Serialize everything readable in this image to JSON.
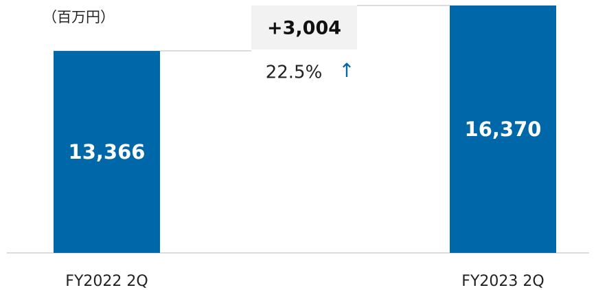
{
  "chart_data": {
    "type": "bar",
    "unit_label": "（百万円）",
    "categories": [
      "FY2022 2Q",
      "FY2023 2Q"
    ],
    "values": [
      13366,
      16370
    ],
    "value_labels": [
      "13,366",
      "16,370"
    ],
    "color": "#0068a8",
    "annotation": {
      "difference": "+3,004",
      "percent": "22.5%",
      "arrow": "↑"
    }
  }
}
